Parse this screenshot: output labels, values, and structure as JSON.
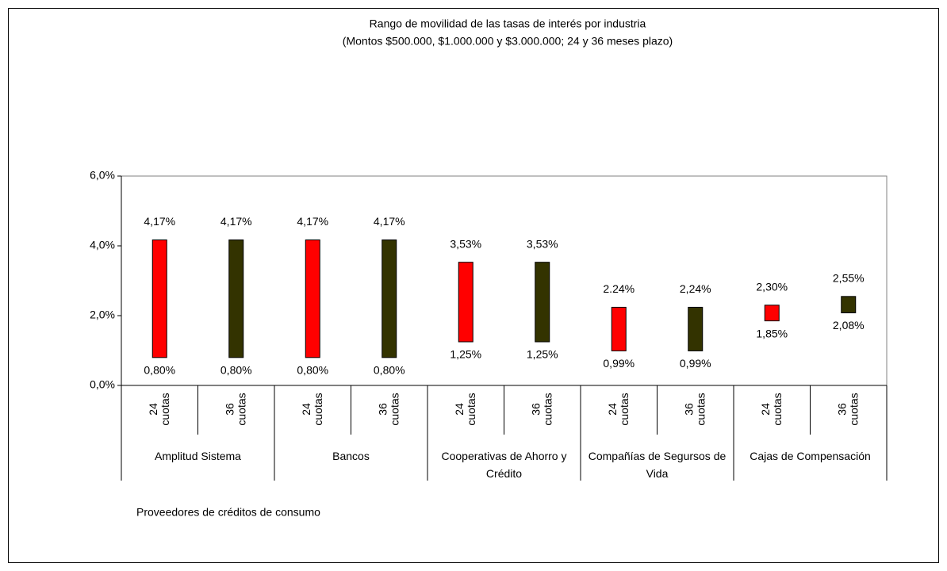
{
  "chart_data": {
    "type": "floating_bar",
    "title": "Rango de movilidad de las tasas de interés por industria",
    "subtitle": "(Montos $500.000, $1.000.000 y $3.000.000; 24 y 36 meses plazo)",
    "xlabel": "Proveedores de créditos de consumo",
    "ylim": [
      0,
      6
    ],
    "yticks": [
      {
        "value": 0,
        "label": "0,0%"
      },
      {
        "value": 2,
        "label": "2,0%"
      },
      {
        "value": 4,
        "label": "4,0%"
      },
      {
        "value": 6,
        "label": "6,0%"
      }
    ],
    "colors": [
      "#ff0000",
      "#333300"
    ],
    "groups": [
      {
        "name": "Amplitud Sistema",
        "categories": [
          "24 cuotas",
          "36 cuotas"
        ],
        "low": [
          0.8,
          0.8
        ],
        "high": [
          4.17,
          4.17
        ],
        "low_labels": [
          "0,80%",
          "0,80%"
        ],
        "high_labels": [
          "4,17%",
          "4,17%"
        ]
      },
      {
        "name": "Bancos",
        "categories": [
          "24 cuotas",
          "36 cuotas"
        ],
        "low": [
          0.8,
          0.8
        ],
        "high": [
          4.17,
          4.17
        ],
        "low_labels": [
          "0,80%",
          "0,80%"
        ],
        "high_labels": [
          "4,17%",
          "4,17%"
        ]
      },
      {
        "name": "Cooperativas de Ahorro y Crédito",
        "categories": [
          "24 cuotas",
          "36 cuotas"
        ],
        "low": [
          1.25,
          1.25
        ],
        "high": [
          3.53,
          3.53
        ],
        "low_labels": [
          "1,25%",
          "1,25%"
        ],
        "high_labels": [
          "3,53%",
          "3,53%"
        ]
      },
      {
        "name": "Compañías de Segursos de Vida",
        "categories": [
          "24 cuotas",
          "36 cuotas"
        ],
        "low": [
          0.99,
          0.99
        ],
        "high": [
          2.24,
          2.24
        ],
        "low_labels": [
          "0,99%",
          "0,99%"
        ],
        "high_labels": [
          "2.24%",
          "2,24%"
        ]
      },
      {
        "name": "Cajas de Compensación",
        "categories": [
          "24 cuotas",
          "36 cuotas"
        ],
        "low": [
          1.85,
          2.08
        ],
        "high": [
          2.3,
          2.55
        ],
        "low_labels": [
          "1,85%",
          "2,08%"
        ],
        "high_labels": [
          "2,30%",
          "2,55%"
        ]
      }
    ]
  }
}
